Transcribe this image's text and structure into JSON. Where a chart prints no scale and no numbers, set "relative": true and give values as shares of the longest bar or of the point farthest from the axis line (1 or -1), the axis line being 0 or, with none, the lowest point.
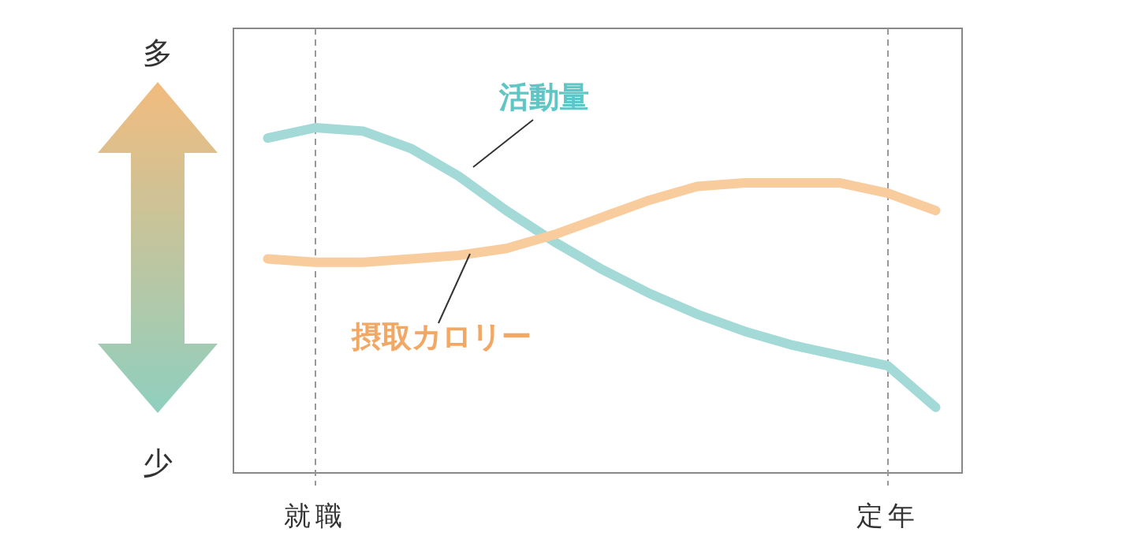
{
  "chart_data": {
    "type": "line",
    "relative": true,
    "categories": [
      null,
      "就職",
      null,
      null,
      null,
      null,
      null,
      null,
      null,
      null,
      null,
      null,
      null,
      "定年",
      null
    ],
    "series": [
      {
        "name": "活動量",
        "color": "#a3d9d7",
        "values": [
          0.97,
          1,
          0.99,
          0.94,
          0.86,
          0.76,
          0.67,
          0.59,
          0.52,
          0.46,
          0.41,
          0.37,
          0.34,
          0.31,
          0.19
        ]
      },
      {
        "name": "摂取カロリー",
        "color": "#f9cc9e",
        "values": [
          0.62,
          0.61,
          0.61,
          0.62,
          0.63,
          0.65,
          0.69,
          0.74,
          0.79,
          0.83,
          0.84,
          0.84,
          0.84,
          0.81,
          0.76
        ]
      }
    ],
    "ref_lines": [
      {
        "axis": "x",
        "value": "就職",
        "color": "#999999",
        "line_style": "dashed"
      },
      {
        "axis": "x",
        "value": "定年",
        "color": "#999999",
        "line_style": "dashed"
      }
    ],
    "annotations": [
      "多",
      "少"
    ],
    "grid": false,
    "line_style": "solid"
  }
}
